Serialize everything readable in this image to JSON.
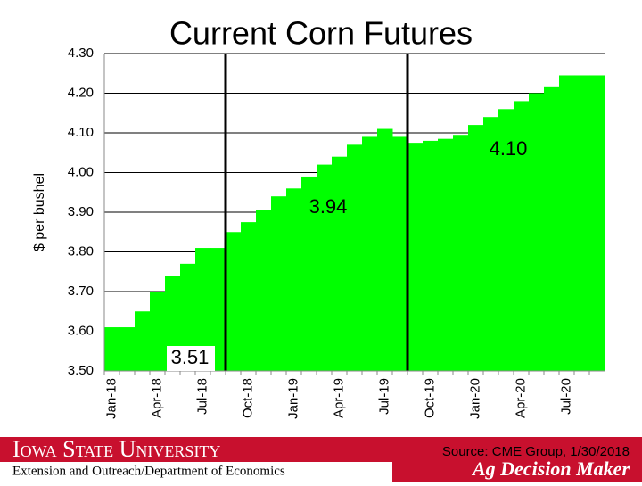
{
  "chart_data": {
    "type": "step-area",
    "title": "Current Corn Futures",
    "y_label": "$ per bushel",
    "color": "#00ff00",
    "grid": true,
    "categories": [
      "Jan-18",
      null,
      null,
      "Apr-18",
      null,
      null,
      "Jul-18",
      null,
      null,
      "Oct-18",
      null,
      null,
      "Jan-19",
      null,
      null,
      "Apr-19",
      null,
      null,
      "Jul-19",
      null,
      null,
      "Oct-19",
      null,
      null,
      "Jan-20",
      null,
      null,
      "Apr-20",
      null,
      null,
      "Jul-20",
      null,
      null
    ],
    "values": [
      3.61,
      3.61,
      3.65,
      3.7,
      3.74,
      3.77,
      3.81,
      3.81,
      3.85,
      3.875,
      3.905,
      3.94,
      3.96,
      3.99,
      4.02,
      4.04,
      4.07,
      4.09,
      4.11,
      4.09,
      4.075,
      4.08,
      4.085,
      4.095,
      4.12,
      4.14,
      4.16,
      4.18,
      4.2,
      4.215,
      4.245,
      4.245,
      4.245
    ],
    "ylim": [
      3.5,
      4.3
    ],
    "yticks": [
      {
        "value": 3.5,
        "label": "3.50"
      },
      {
        "value": 3.6,
        "label": "3.60"
      },
      {
        "value": 3.7,
        "label": "3.70"
      },
      {
        "value": 3.8,
        "label": "3.80"
      },
      {
        "value": 3.9,
        "label": "3.90"
      },
      {
        "value": 4.0,
        "label": "4.00"
      },
      {
        "value": 4.1,
        "label": "4.10"
      },
      {
        "value": 4.2,
        "label": "4.20"
      },
      {
        "value": 4.3,
        "label": "4.30"
      }
    ],
    "annotations": [
      "3.51",
      "3.94",
      "4.10"
    ]
  },
  "footer": {
    "university": "Iowa State University",
    "department": "Extension and Outreach/Department of Economics",
    "source": "Source: CME Group, 1/30/2018",
    "brand": "Ag Decision Maker"
  }
}
